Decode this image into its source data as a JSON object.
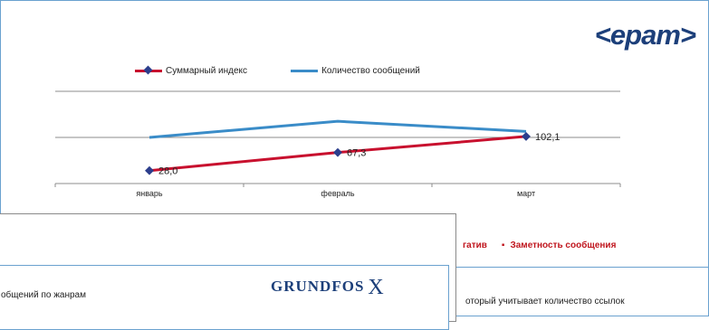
{
  "back_slide": {
    "logo_text": "<epam>",
    "bottom_legend": {
      "partial_item": "гатив",
      "item": "Заметность сообщения"
    },
    "bottom_text": "оторый учитывает количество ссылок"
  },
  "front_slide": {
    "title_partial": "общений  по жанрам",
    "logo_text": "GRUNDFOS",
    "logo_mark": "X"
  },
  "chart_data": {
    "type": "line",
    "categories": [
      "январь",
      "февраль",
      "март"
    ],
    "series": [
      {
        "name": "Суммарный индекс",
        "values": [
          28.0,
          67.3,
          102.1
        ],
        "color": "#c8102e",
        "labels": [
          "28,0",
          "67,3",
          "102,1"
        ]
      },
      {
        "name": "Количество сообщений",
        "values": [
          100,
          135,
          113
        ],
        "color": "#3a8cc8"
      }
    ],
    "ylim": [
      0,
      200
    ],
    "grid": true,
    "legend": "top"
  }
}
